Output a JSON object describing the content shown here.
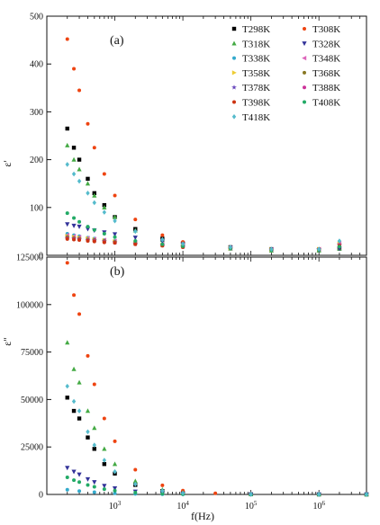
{
  "chart_data": [
    {
      "type": "scatter",
      "panel_label": "(a)",
      "xlabel": "",
      "ylabel": "ε'",
      "xscale": "log",
      "ylim": [
        0,
        500
      ],
      "yticks": [
        "0",
        "100",
        "200",
        "300",
        "400",
        "500"
      ],
      "legend": "top-right",
      "series": [
        {
          "name": "T298K",
          "color": "#000000",
          "marker": "square",
          "x": [
            200,
            250,
            300,
            400,
            500,
            700,
            1000,
            2000,
            5000,
            10000,
            50000,
            200000,
            1000000,
            2000000
          ],
          "y": [
            265,
            225,
            200,
            160,
            130,
            105,
            80,
            55,
            35,
            25,
            17,
            13,
            12,
            14
          ]
        },
        {
          "name": "T308K",
          "color": "#ee4411",
          "marker": "circle",
          "x": [
            200,
            250,
            300,
            400,
            500,
            700,
            1000,
            2000,
            5000,
            10000,
            50000,
            200000,
            1000000,
            2000000
          ],
          "y": [
            452,
            390,
            345,
            275,
            225,
            170,
            125,
            75,
            42,
            28,
            17,
            12,
            12,
            16
          ]
        },
        {
          "name": "T318K",
          "color": "#44aa44",
          "marker": "triangle",
          "x": [
            200,
            250,
            300,
            400,
            500,
            700,
            1000,
            2000,
            5000,
            10000,
            50000,
            200000,
            1000000,
            2000000
          ],
          "y": [
            230,
            200,
            180,
            150,
            125,
            100,
            80,
            52,
            32,
            22,
            14,
            10,
            10,
            14
          ]
        },
        {
          "name": "T328K",
          "color": "#333399",
          "marker": "triangle-down",
          "x": [
            200,
            250,
            300,
            400,
            500,
            700,
            1000,
            2000,
            5000,
            10000,
            50000,
            200000,
            1000000,
            2000000
          ],
          "y": [
            65,
            62,
            60,
            55,
            52,
            48,
            44,
            37,
            29,
            23,
            16,
            12,
            11,
            14
          ]
        },
        {
          "name": "T338K",
          "color": "#33aacc",
          "marker": "circle",
          "x": [
            200,
            250,
            300,
            400,
            500,
            700,
            1000,
            2000,
            5000,
            10000,
            50000,
            200000,
            1000000,
            2000000
          ],
          "y": [
            45,
            42,
            40,
            37,
            35,
            32,
            30,
            26,
            22,
            19,
            15,
            12,
            13,
            28
          ]
        },
        {
          "name": "T348K",
          "color": "#dd66bb",
          "marker": "triangle-left",
          "x": [
            200,
            250,
            300,
            400,
            500,
            700,
            1000,
            2000,
            5000,
            10000,
            50000,
            200000,
            1000000,
            2000000
          ],
          "y": [
            42,
            40,
            38,
            36,
            34,
            32,
            30,
            27,
            23,
            20,
            15,
            12,
            13,
            25
          ]
        },
        {
          "name": "T358K",
          "color": "#eecc33",
          "marker": "triangle-right",
          "x": [
            200,
            250,
            300,
            400,
            500,
            700,
            1000,
            2000,
            5000,
            10000,
            50000,
            200000,
            1000000,
            2000000
          ],
          "y": [
            40,
            38,
            37,
            35,
            33,
            31,
            29,
            26,
            22,
            19,
            15,
            12,
            13,
            24
          ]
        },
        {
          "name": "T368K",
          "color": "#887722",
          "marker": "circle",
          "x": [
            200,
            250,
            300,
            400,
            500,
            700,
            1000,
            2000,
            5000,
            10000,
            50000,
            200000,
            1000000,
            2000000
          ],
          "y": [
            38,
            36,
            35,
            33,
            32,
            30,
            28,
            25,
            22,
            19,
            15,
            12,
            13,
            22
          ]
        },
        {
          "name": "T378K",
          "color": "#6644bb",
          "marker": "star",
          "x": [
            200,
            250,
            300,
            400,
            500,
            700,
            1000,
            2000,
            5000,
            10000,
            50000,
            200000,
            1000000,
            2000000
          ],
          "y": [
            36,
            35,
            34,
            32,
            31,
            29,
            27,
            24,
            21,
            18,
            15,
            12,
            13,
            22
          ]
        },
        {
          "name": "T388K",
          "color": "#cc3399",
          "marker": "circle",
          "x": [
            200,
            250,
            300,
            400,
            500,
            700,
            1000,
            2000,
            5000,
            10000,
            50000,
            200000,
            1000000,
            2000000
          ],
          "y": [
            35,
            34,
            33,
            31,
            30,
            28,
            26,
            24,
            21,
            18,
            14,
            12,
            13,
            22
          ]
        },
        {
          "name": "T398K",
          "color": "#cc3311",
          "marker": "circle",
          "x": [
            200,
            250,
            300,
            400,
            500,
            700,
            1000,
            2000,
            5000,
            10000,
            50000,
            200000,
            1000000,
            2000000
          ],
          "y": [
            34,
            33,
            32,
            30,
            29,
            27,
            26,
            23,
            20,
            17,
            14,
            12,
            13,
            20
          ]
        },
        {
          "name": "T408K",
          "color": "#22aa66",
          "marker": "circle",
          "x": [
            200,
            250,
            300,
            400,
            500,
            700,
            1000,
            2000,
            5000,
            10000,
            50000,
            200000,
            1000000,
            2000000
          ],
          "y": [
            88,
            78,
            70,
            60,
            53,
            45,
            38,
            30,
            23,
            19,
            14,
            11,
            12,
            18
          ]
        },
        {
          "name": "T418K",
          "color": "#55bbcc",
          "marker": "diamond",
          "x": [
            200,
            250,
            300,
            400,
            500,
            700,
            1000,
            2000,
            5000,
            10000,
            50000,
            200000,
            1000000,
            2000000
          ],
          "y": [
            190,
            170,
            155,
            130,
            110,
            90,
            72,
            50,
            33,
            24,
            17,
            13,
            13,
            30
          ]
        }
      ]
    },
    {
      "type": "scatter",
      "panel_label": "(b)",
      "xlabel": "f(Hz)",
      "ylabel": "ε''",
      "xscale": "log",
      "xlim": [
        100,
        5000000
      ],
      "xticks": [
        {
          "v": 1000,
          "base": "10",
          "exp": "3"
        },
        {
          "v": 10000,
          "base": "10",
          "exp": "4"
        },
        {
          "v": 100000,
          "base": "10",
          "exp": "5"
        },
        {
          "v": 1000000,
          "base": "10",
          "exp": "6"
        }
      ],
      "ylim": [
        0,
        125000
      ],
      "yticks": [
        "0",
        "25000",
        "50000",
        "75000",
        "100000",
        "125000"
      ],
      "series": [
        {
          "name": "T298K",
          "color": "#000000",
          "marker": "square",
          "x": [
            200,
            250,
            300,
            400,
            500,
            700,
            1000,
            2000,
            5000,
            10000,
            100000,
            1000000,
            5000000
          ],
          "y": [
            51000,
            44000,
            40000,
            30000,
            24000,
            16000,
            11000,
            5000,
            1800,
            700,
            80,
            10,
            5
          ]
        },
        {
          "name": "T308K",
          "color": "#ee4411",
          "marker": "circle",
          "x": [
            200,
            250,
            300,
            400,
            500,
            700,
            1000,
            2000,
            5000,
            10000,
            30000,
            100000,
            1000000,
            5000000
          ],
          "y": [
            122000,
            105000,
            95000,
            73000,
            58000,
            40000,
            28000,
            13000,
            4800,
            2000,
            600,
            150,
            15,
            5
          ]
        },
        {
          "name": "T318K",
          "color": "#44aa44",
          "marker": "triangle",
          "x": [
            200,
            250,
            300,
            400,
            500,
            700,
            1000,
            2000,
            5000,
            10000,
            100000,
            1000000,
            5000000
          ],
          "y": [
            80000,
            66000,
            59000,
            44000,
            35000,
            24000,
            16000,
            7000,
            2500,
            1000,
            100,
            12,
            5
          ]
        },
        {
          "name": "T328K",
          "color": "#333399",
          "marker": "triangle-down",
          "x": [
            200,
            250,
            300,
            400,
            500,
            700,
            1000,
            2000,
            5000,
            10000,
            100000,
            1000000,
            5000000
          ],
          "y": [
            14000,
            12000,
            10500,
            8000,
            6500,
            4500,
            3200,
            1500,
            600,
            250,
            30,
            5,
            3
          ]
        },
        {
          "name": "T338K",
          "color": "#33aacc",
          "marker": "circle",
          "x": [
            200,
            300,
            500,
            1000,
            2000,
            5000,
            10000,
            100000,
            1000000,
            5000000
          ],
          "y": [
            2500,
            1800,
            1200,
            600,
            300,
            120,
            60,
            8,
            2,
            2
          ]
        },
        {
          "name": "T408K",
          "color": "#22aa66",
          "marker": "circle",
          "x": [
            200,
            250,
            300,
            400,
            500,
            700,
            1000,
            2000,
            5000,
            10000,
            100000,
            1000000,
            5000000
          ],
          "y": [
            9000,
            7500,
            6500,
            5000,
            4000,
            2800,
            2000,
            1000,
            400,
            150,
            20,
            4,
            2
          ]
        },
        {
          "name": "T418K",
          "color": "#55bbcc",
          "marker": "diamond",
          "x": [
            200,
            250,
            300,
            400,
            500,
            700,
            1000,
            2000,
            5000,
            10000,
            100000,
            1000000,
            5000000
          ],
          "y": [
            57000,
            49000,
            44000,
            33000,
            26000,
            18000,
            12000,
            5400,
            1900,
            750,
            80,
            10,
            5
          ]
        }
      ]
    }
  ]
}
